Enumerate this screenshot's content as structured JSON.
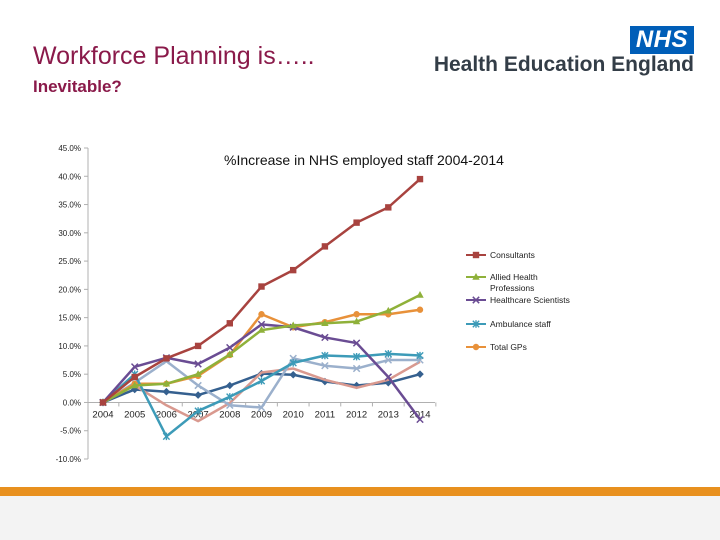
{
  "header": {
    "title": "Workforce Planning is…..",
    "subtitle": "Inevitable?",
    "logo_badge": "NHS",
    "logo_text": "Health Education England"
  },
  "colors": {
    "title": "#8a1a4a",
    "footer": "#e8901e"
  },
  "chart_data": {
    "type": "line",
    "title": "%Increase in NHS employed staff 2004-2014",
    "xlabel": "",
    "ylabel": "",
    "x": [
      "2004",
      "2005",
      "2006",
      "2007",
      "2008",
      "2009",
      "2010",
      "2011",
      "2012",
      "2013",
      "2014"
    ],
    "ylim": [
      -10,
      45
    ],
    "yticks": [
      -10,
      -5,
      0,
      5,
      10,
      15,
      20,
      25,
      30,
      35,
      40,
      45
    ],
    "ytick_labels": [
      "-10.0%",
      "-5.0%",
      "0.0%",
      "5.0%",
      "10.0%",
      "15.0%",
      "20.0%",
      "25.0%",
      "30.0%",
      "35.0%",
      "40.0%",
      "45.0%"
    ],
    "legend_position": "right",
    "series": [
      {
        "name": "Consultants",
        "color": "#a8433f",
        "marker": "square",
        "values": [
          0,
          4.5,
          7.8,
          10,
          14,
          20.5,
          23.4,
          27.6,
          31.8,
          34.5,
          39.5
        ]
      },
      {
        "name": "Allied Health Professions",
        "color": "#8fb13a",
        "marker": "triangle",
        "values": [
          0,
          3,
          3.3,
          5,
          8.5,
          12.8,
          13.6,
          14,
          14.3,
          16.2,
          19
        ]
      },
      {
        "name": "Healthcare Scientists",
        "color": "#6a4c93",
        "marker": "x",
        "values": [
          0,
          6.3,
          7.9,
          6.8,
          9.7,
          13.8,
          13.3,
          11.5,
          10.5,
          4.5,
          -3
        ]
      },
      {
        "name": "Ambulance staff",
        "color": "#3d9bb8",
        "marker": "star",
        "values": [
          0,
          5,
          -6,
          -1.5,
          1,
          3.8,
          7,
          8.3,
          8.1,
          8.6,
          8.3
        ]
      },
      {
        "name": "Total GPs",
        "color": "#e8913a",
        "marker": "circle",
        "values": [
          0,
          3.3,
          3.3,
          4.7,
          8.4,
          15.6,
          13.3,
          14.2,
          15.6,
          15.6,
          16.4
        ]
      },
      {
        "name": "",
        "color": "#9bb0cc",
        "marker": "x",
        "values": [
          0,
          3.5,
          7.3,
          3,
          -0.5,
          -0.9,
          7.8,
          6.5,
          6,
          7.5,
          7.5
        ]
      },
      {
        "name": "",
        "color": "#d9998f",
        "marker": "none",
        "values": [
          0,
          3,
          -0.5,
          -3.3,
          -0.1,
          5.3,
          6,
          4,
          2.6,
          4,
          7.2
        ]
      },
      {
        "name": "",
        "color": "#35608f",
        "marker": "diamond",
        "values": [
          0,
          2.3,
          1.9,
          1.3,
          3,
          5.1,
          4.9,
          3.7,
          3,
          3.5,
          5
        ]
      }
    ],
    "legend": [
      {
        "label": "Consultants",
        "color": "#a8433f",
        "marker": "square"
      },
      {
        "label": "Allied Health Professions",
        "color": "#8fb13a",
        "marker": "triangle"
      },
      {
        "label": "Healthcare Scientists",
        "color": "#6a4c93",
        "marker": "x"
      },
      {
        "label": "Ambulance staff",
        "color": "#3d9bb8",
        "marker": "star"
      },
      {
        "label": "Total GPs",
        "color": "#e8913a",
        "marker": "circle"
      }
    ]
  }
}
